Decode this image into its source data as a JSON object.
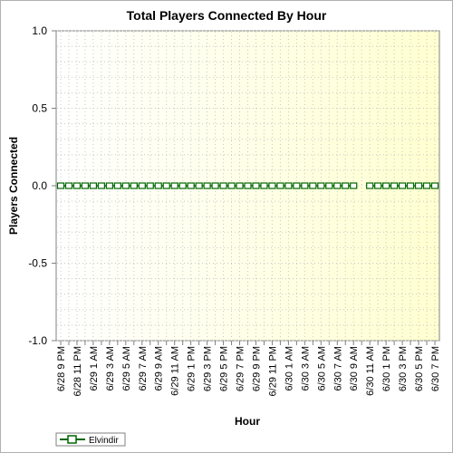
{
  "chart_data": {
    "type": "line",
    "title": "Total Players Connected By Hour",
    "xlabel": "Hour",
    "ylabel": "Players Connected",
    "ylim": [
      -1.0,
      1.0
    ],
    "yticks": [
      "1.0",
      "0.5",
      "0.0",
      "-0.5",
      "-1.0"
    ],
    "categories": [
      "6/28 9 PM",
      "6/28 10 PM",
      "6/28 11 PM",
      "6/29 12 AM",
      "6/29 1 AM",
      "6/29 2 AM",
      "6/29 3 AM",
      "6/29 4 AM",
      "6/29 5 AM",
      "6/29 6 AM",
      "6/29 7 AM",
      "6/29 8 AM",
      "6/29 9 AM",
      "6/29 10 AM",
      "6/29 11 AM",
      "6/29 12 PM",
      "6/29 1 PM",
      "6/29 2 PM",
      "6/29 3 PM",
      "6/29 4 PM",
      "6/29 5 PM",
      "6/29 6 PM",
      "6/29 7 PM",
      "6/29 8 PM",
      "6/29 9 PM",
      "6/29 10 PM",
      "6/29 11 PM",
      "6/30 12 AM",
      "6/30 1 AM",
      "6/30 2 AM",
      "6/30 3 AM",
      "6/30 4 AM",
      "6/30 5 AM",
      "6/30 6 AM",
      "6/30 7 AM",
      "6/30 8 AM",
      "6/30 9 AM",
      "6/30 10 AM",
      "6/30 11 AM",
      "6/30 12 PM",
      "6/30 1 PM",
      "6/30 2 PM",
      "6/30 3 PM",
      "6/30 4 PM",
      "6/30 5 PM",
      "6/30 6 PM",
      "6/30 7 PM"
    ],
    "tick_labels": [
      "6/28 9 PM",
      "6/28 11 PM",
      "6/29 1 AM",
      "6/29 3 AM",
      "6/29 5 AM",
      "6/29 7 AM",
      "6/29 9 AM",
      "6/29 11 AM",
      "6/29 1 PM",
      "6/29 3 PM",
      "6/29 5 PM",
      "6/29 7 PM",
      "6/29 9 PM",
      "6/29 11 PM",
      "6/30 1 AM",
      "6/30 3 AM",
      "6/30 5 AM",
      "6/30 7 AM",
      "6/30 9 AM",
      "6/30 11 AM",
      "6/30 1 PM",
      "6/30 3 PM",
      "6/30 5 PM",
      "6/30 7 PM"
    ],
    "series": [
      {
        "name": "Elvindir",
        "color": "#006600",
        "marker": "square-open",
        "values": [
          0,
          0,
          0,
          0,
          0,
          0,
          0,
          0,
          0,
          0,
          0,
          0,
          0,
          0,
          0,
          0,
          0,
          0,
          0,
          0,
          0,
          0,
          0,
          0,
          0,
          0,
          0,
          0,
          0,
          0,
          0,
          0,
          0,
          0,
          0,
          0,
          0,
          null,
          0,
          0,
          0,
          0,
          0,
          0,
          0,
          0,
          0
        ]
      }
    ],
    "legend_position": "bottom-left",
    "grid": true,
    "plot_background": "#ffffe0"
  }
}
